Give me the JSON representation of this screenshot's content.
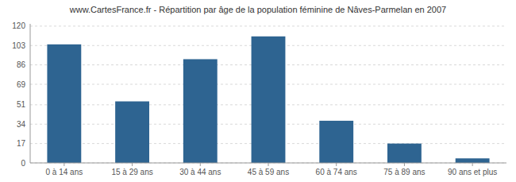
{
  "chart_data": {
    "type": "bar",
    "title": "www.CartesFrance.fr - Répartition par âge de la population féminine de Nâves-Parmelan en 2007",
    "categories": [
      "0 à 14 ans",
      "15 à 29 ans",
      "30 à 44 ans",
      "45 à 59 ans",
      "60 à 74 ans",
      "75 à 89 ans",
      "90 ans et plus"
    ],
    "values": [
      104,
      54,
      91,
      111,
      37,
      17,
      4
    ],
    "color": "#2e6491",
    "ylim": [
      0,
      122
    ],
    "yticks": [
      0,
      17,
      34,
      51,
      69,
      86,
      103,
      120
    ],
    "grid": true
  }
}
